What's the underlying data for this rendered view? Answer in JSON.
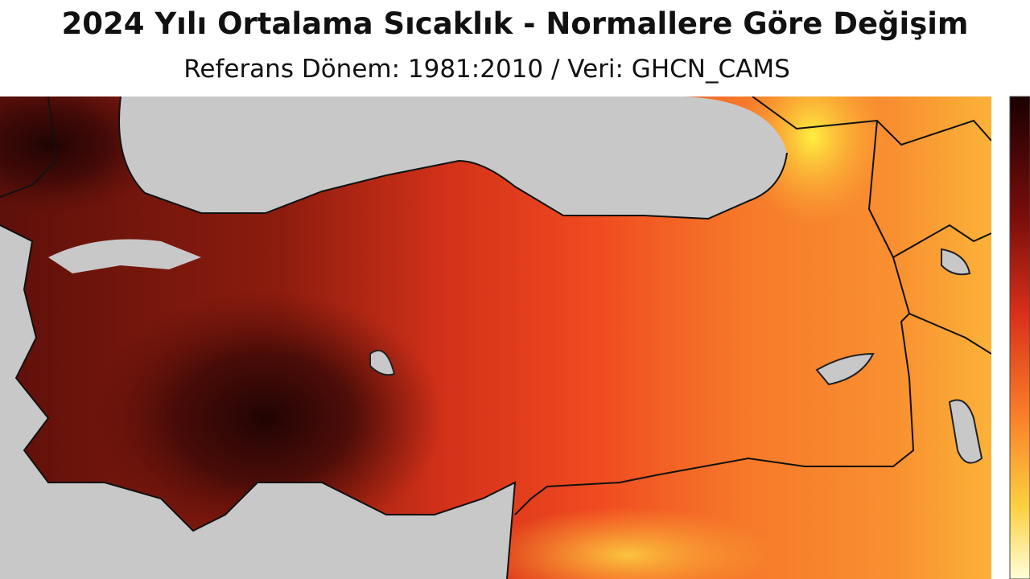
{
  "header": {
    "title": "2024 Yılı Ortalama Sıcaklık - Normallere Göre Değişim",
    "subtitle": "Referans Dönem: 1981:2010 / Veri: GHCN_CAMS"
  }
}
